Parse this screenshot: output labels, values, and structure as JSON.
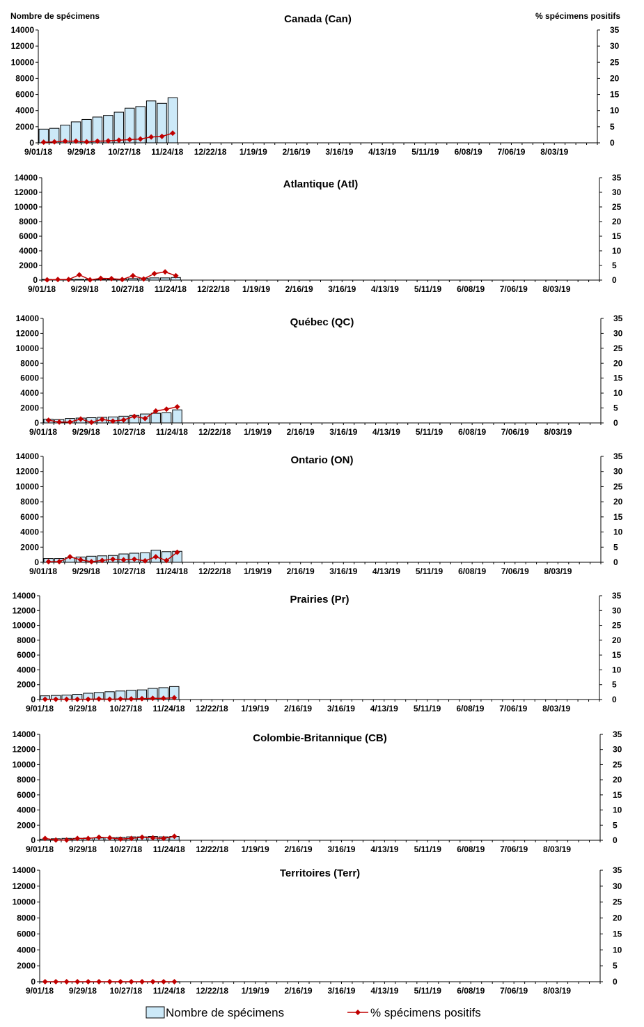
{
  "header": {
    "left_axis_label": "Nombre de spécimens",
    "right_axis_label": "% spécimens positifs"
  },
  "legend": {
    "bars_label": "Nombre de spécimens",
    "line_label": "% spécimens positifs"
  },
  "colors": {
    "bar_fill": "#cce9f8",
    "bar_stroke": "#000000",
    "line": "#c00000"
  },
  "x_tick_labels": [
    "9/01/18",
    "9/29/18",
    "10/27/18",
    "11/24/18",
    "12/22/18",
    "1/19/19",
    "2/16/19",
    "3/16/19",
    "4/13/19",
    "5/11/19",
    "6/08/19",
    "7/06/19",
    "8/03/19"
  ],
  "left_ticks": [
    0,
    2000,
    4000,
    6000,
    8000,
    10000,
    12000,
    14000
  ],
  "right_ticks": [
    0,
    5,
    10,
    15,
    20,
    25,
    30,
    35
  ],
  "chart_data": [
    {
      "type": "bar",
      "title": "Canada (Can)",
      "weeks": 52,
      "ylim": [
        0,
        14000
      ],
      "y2lim": [
        0,
        35
      ],
      "series": [
        {
          "name": "Nombre de spécimens",
          "values": [
            1700,
            1800,
            2200,
            2600,
            2900,
            3200,
            3400,
            3800,
            4300,
            4500,
            5200,
            4900,
            5600
          ]
        },
        {
          "name": "% spécimens positifs",
          "values": [
            0.2,
            0.3,
            0.5,
            0.5,
            0.3,
            0.5,
            0.6,
            0.8,
            1.0,
            1.2,
            1.8,
            2.0,
            3.0
          ]
        }
      ]
    },
    {
      "type": "bar",
      "title": "Atlantique (Atl)",
      "weeks": 52,
      "ylim": [
        0,
        14000
      ],
      "y2lim": [
        0,
        35
      ],
      "series": [
        {
          "name": "Nombre de spécimens",
          "values": [
            100,
            80,
            100,
            100,
            100,
            100,
            100,
            150,
            200,
            250,
            300,
            300,
            350
          ]
        },
        {
          "name": "% spécimens positifs",
          "values": [
            0.1,
            0.2,
            0.2,
            1.8,
            0.1,
            0.6,
            0.5,
            0.2,
            1.5,
            0.4,
            2.2,
            2.8,
            1.5
          ]
        }
      ]
    },
    {
      "type": "bar",
      "title": "Québec (QC)",
      "weeks": 52,
      "ylim": [
        0,
        14000
      ],
      "y2lim": [
        0,
        35
      ],
      "series": [
        {
          "name": "Nombre de spécimens",
          "values": [
            500,
            450,
            600,
            650,
            700,
            750,
            800,
            900,
            1000,
            1200,
            1300,
            1350,
            1750
          ]
        },
        {
          "name": "% spécimens positifs",
          "values": [
            0.9,
            0.3,
            0.3,
            1.3,
            0.2,
            1.2,
            0.6,
            1.0,
            2.2,
            1.5,
            4.0,
            4.6,
            5.4
          ]
        }
      ]
    },
    {
      "type": "bar",
      "title": "Ontario (ON)",
      "weeks": 52,
      "ylim": [
        0,
        14000
      ],
      "y2lim": [
        0,
        35
      ],
      "series": [
        {
          "name": "Nombre de spécimens",
          "values": [
            500,
            500,
            600,
            700,
            800,
            850,
            900,
            1100,
            1200,
            1250,
            1600,
            1400,
            1450
          ]
        },
        {
          "name": "% spécimens positifs",
          "values": [
            0.2,
            0.2,
            1.8,
            0.8,
            0.2,
            0.6,
            1.0,
            0.8,
            1.0,
            0.5,
            1.8,
            0.6,
            3.3
          ]
        }
      ]
    },
    {
      "type": "bar",
      "title": "Prairies (Pr)",
      "weeks": 52,
      "ylim": [
        0,
        14000
      ],
      "y2lim": [
        0,
        35
      ],
      "series": [
        {
          "name": "Nombre de spécimens",
          "values": [
            500,
            550,
            600,
            700,
            850,
            950,
            1050,
            1150,
            1250,
            1300,
            1500,
            1600,
            1750
          ]
        },
        {
          "name": "% spécimens positifs",
          "values": [
            0.1,
            0.1,
            0.1,
            0.1,
            0.1,
            0.2,
            0.1,
            0.2,
            0.2,
            0.3,
            0.4,
            0.4,
            0.6
          ]
        }
      ]
    },
    {
      "type": "bar",
      "title": "Colombie-Britannique (CB)",
      "weeks": 52,
      "ylim": [
        0,
        14000
      ],
      "y2lim": [
        0,
        35
      ],
      "series": [
        {
          "name": "Nombre de spécimens",
          "values": [
            150,
            200,
            250,
            250,
            300,
            300,
            350,
            400,
            450,
            450,
            500,
            450,
            500
          ]
        },
        {
          "name": "% spécimens positifs",
          "values": [
            0.6,
            0.1,
            0.1,
            0.6,
            0.6,
            1.0,
            0.8,
            0.4,
            0.6,
            1.0,
            0.8,
            0.6,
            1.3
          ]
        }
      ]
    },
    {
      "type": "bar",
      "title": "Territoires (Terr)",
      "weeks": 52,
      "ylim": [
        0,
        14000
      ],
      "y2lim": [
        0,
        35
      ],
      "series": [
        {
          "name": "Nombre de spécimens",
          "values": [
            5,
            5,
            5,
            5,
            5,
            5,
            5,
            5,
            5,
            5,
            5,
            5,
            5
          ]
        },
        {
          "name": "% spécimens positifs",
          "values": [
            0,
            0,
            0,
            0,
            0,
            0,
            0,
            0,
            0,
            0,
            0,
            0,
            0
          ]
        }
      ]
    }
  ]
}
